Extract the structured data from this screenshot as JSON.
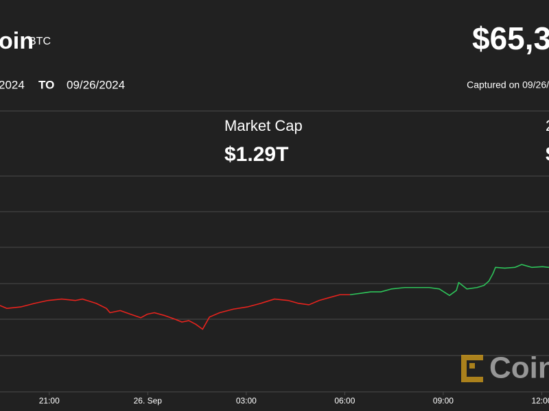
{
  "header": {
    "name": "oin",
    "symbol": "BTC",
    "price": "$65,3",
    "from": "2024",
    "to_word": "TO",
    "to": "09/26/2024",
    "captured": "Captured on 09/26/"
  },
  "stats": {
    "market_cap_label": "Market Cap",
    "market_cap_value": "$1.29T",
    "next_label": "2",
    "next_value": "$"
  },
  "watermark": "Coin",
  "chart_data": {
    "type": "line",
    "xlim": [
      19.5,
      36.22
    ],
    "ylim": [
      63550,
      66550
    ],
    "xticks": [
      {
        "value": 21,
        "label": "21:00"
      },
      {
        "value": 24,
        "label": "26. Sep"
      },
      {
        "value": 27,
        "label": "03:00"
      },
      {
        "value": 30,
        "label": "06:00"
      },
      {
        "value": 33,
        "label": "09:00"
      },
      {
        "value": 36,
        "label": "12:00"
      }
    ],
    "series": [
      {
        "color": "#e8231d",
        "x": [
          19.5,
          19.71,
          20.13,
          20.55,
          20.96,
          21.38,
          21.8,
          22.01,
          22.43,
          22.74,
          22.85,
          23.16,
          23.47,
          23.79,
          23.99,
          24.2,
          24.52,
          24.83,
          25.04,
          25.25,
          25.46,
          25.67,
          25.88,
          26.19,
          26.61,
          27.03,
          27.44,
          27.86,
          28.28,
          28.59,
          28.91,
          29.22,
          29.53,
          29.85,
          30.16
        ],
        "values": [
          64750,
          64710,
          64730,
          64780,
          64820,
          64840,
          64820,
          64840,
          64780,
          64710,
          64650,
          64680,
          64630,
          64580,
          64630,
          64650,
          64610,
          64560,
          64520,
          64540,
          64490,
          64420,
          64590,
          64650,
          64700,
          64730,
          64780,
          64840,
          64820,
          64780,
          64760,
          64820,
          64860,
          64900,
          64900
        ]
      },
      {
        "color": "#2ec45a",
        "x": [
          30.16,
          30.48,
          30.79,
          31.1,
          31.42,
          31.83,
          32.25,
          32.57,
          32.88,
          33.19,
          33.4,
          33.47,
          33.72,
          34.03,
          34.24,
          34.39,
          34.51,
          34.59,
          34.87,
          35.18,
          35.39,
          35.7,
          36.02,
          36.22
        ],
        "values": [
          64900,
          64920,
          64940,
          64940,
          64980,
          65000,
          65000,
          65000,
          64980,
          64890,
          64960,
          65070,
          64980,
          65000,
          65030,
          65090,
          65190,
          65280,
          65270,
          65280,
          65320,
          65280,
          65290,
          65280
        ]
      }
    ]
  }
}
